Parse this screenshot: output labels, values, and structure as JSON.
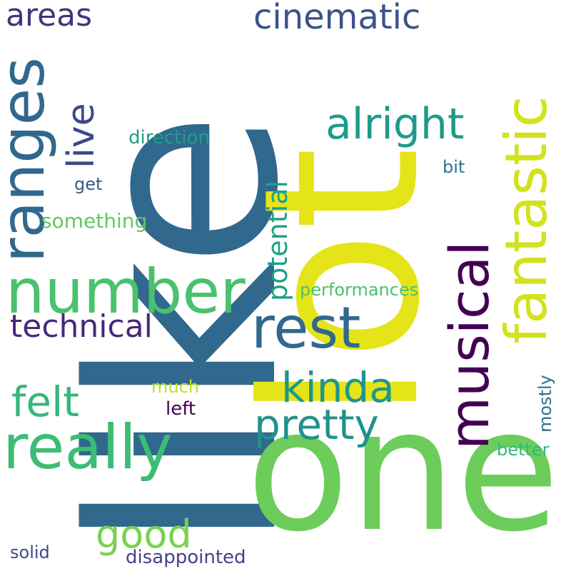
{
  "words": {
    "like": {
      "text": "like",
      "color": "#31688e"
    },
    "lot": {
      "text": "lot",
      "color": "#e4e419"
    },
    "one": {
      "text": "one",
      "color": "#6ccd5a"
    },
    "ranges": {
      "text": "ranges",
      "color": "#31688e"
    },
    "number": {
      "text": "number",
      "color": "#4ac16d"
    },
    "really": {
      "text": "really",
      "color": "#3dbc74"
    },
    "rest": {
      "text": "rest",
      "color": "#31688e"
    },
    "musical": {
      "text": "musical",
      "color": "#440154"
    },
    "fantastic": {
      "text": "fantastic",
      "color": "#d2e21b"
    },
    "alright": {
      "text": "alright",
      "color": "#1f9a8a"
    },
    "cinematic": {
      "text": "cinematic",
      "color": "#3b528b"
    },
    "areas": {
      "text": "areas",
      "color": "#46327e"
    },
    "live": {
      "text": "live",
      "color": "#3e4989"
    },
    "potential": {
      "text": "potential",
      "color": "#1fa187"
    },
    "felt": {
      "text": "felt",
      "color": "#35b779"
    },
    "kinda": {
      "text": "kinda",
      "color": "#1f968b"
    },
    "pretty": {
      "text": "pretty",
      "color": "#21918c"
    },
    "technical": {
      "text": "technical",
      "color": "#482878"
    },
    "good": {
      "text": "good",
      "color": "#7ad151"
    },
    "direction": {
      "text": "direction",
      "color": "#1fa088"
    },
    "get": {
      "text": "get",
      "color": "#38598c"
    },
    "something": {
      "text": "something",
      "color": "#5ec962"
    },
    "bit": {
      "text": "bit",
      "color": "#2c728e"
    },
    "performances": {
      "text": "performances",
      "color": "#4ac16d"
    },
    "much": {
      "text": "much",
      "color": "#c2df23"
    },
    "left": {
      "text": "left",
      "color": "#440154"
    },
    "mostly": {
      "text": "mostly",
      "color": "#2c728e"
    },
    "better": {
      "text": "better",
      "color": "#35b779"
    },
    "solid": {
      "text": "solid",
      "color": "#3e4989"
    },
    "disappointed": {
      "text": "disappointed",
      "color": "#414487"
    }
  }
}
